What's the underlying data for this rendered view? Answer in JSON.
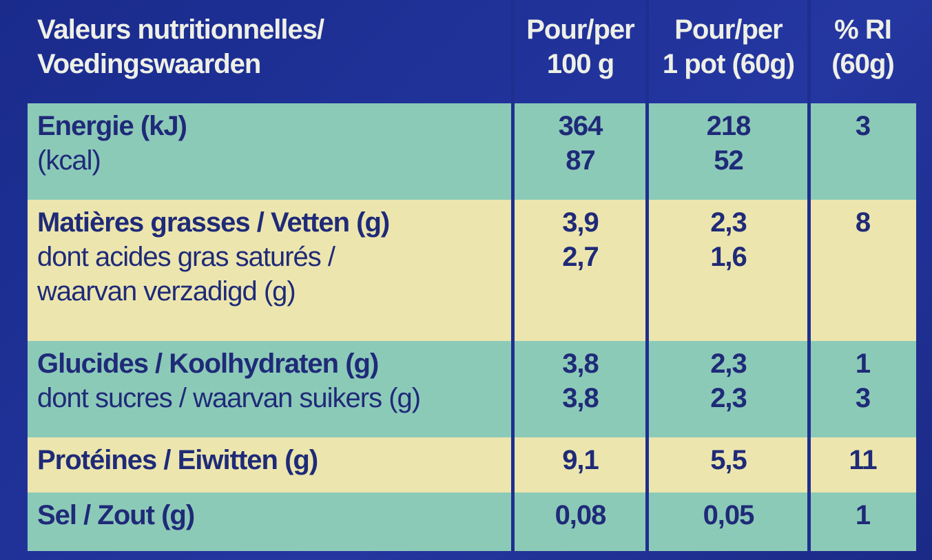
{
  "table": {
    "header": [
      [
        "Valeurs nutritionnelles/",
        "Voedingswaarden"
      ],
      [
        "Pour/per",
        "100 g"
      ],
      [
        "Pour/per",
        "1 pot (60g)"
      ],
      [
        "% RI",
        "(60g)"
      ]
    ],
    "rows": [
      [
        [
          "Energie (kJ)",
          "(kcal)"
        ],
        [
          "364",
          "87"
        ],
        [
          "218",
          "52"
        ],
        [
          "3"
        ]
      ],
      [
        [
          "Matières grasses / Vetten (g)",
          "dont acides gras saturés /",
          "waarvan verzadigd (g)"
        ],
        [
          "3,9",
          "2,7"
        ],
        [
          "2,3",
          "1,6"
        ],
        [
          "8"
        ]
      ],
      [
        [
          "Glucides / Koolhydraten (g)",
          "dont sucres / waarvan suikers (g)"
        ],
        [
          "3,8",
          "3,8"
        ],
        [
          "2,3",
          "2,3"
        ],
        [
          "1",
          "3"
        ]
      ],
      [
        [
          "Protéines / Eiwitten (g)"
        ],
        [
          "9,1"
        ],
        [
          "5,5"
        ],
        [
          "11"
        ]
      ],
      [
        [
          "Sel / Zout (g)"
        ],
        [
          "0,08"
        ],
        [
          "0,05"
        ],
        [
          "1"
        ]
      ]
    ]
  }
}
